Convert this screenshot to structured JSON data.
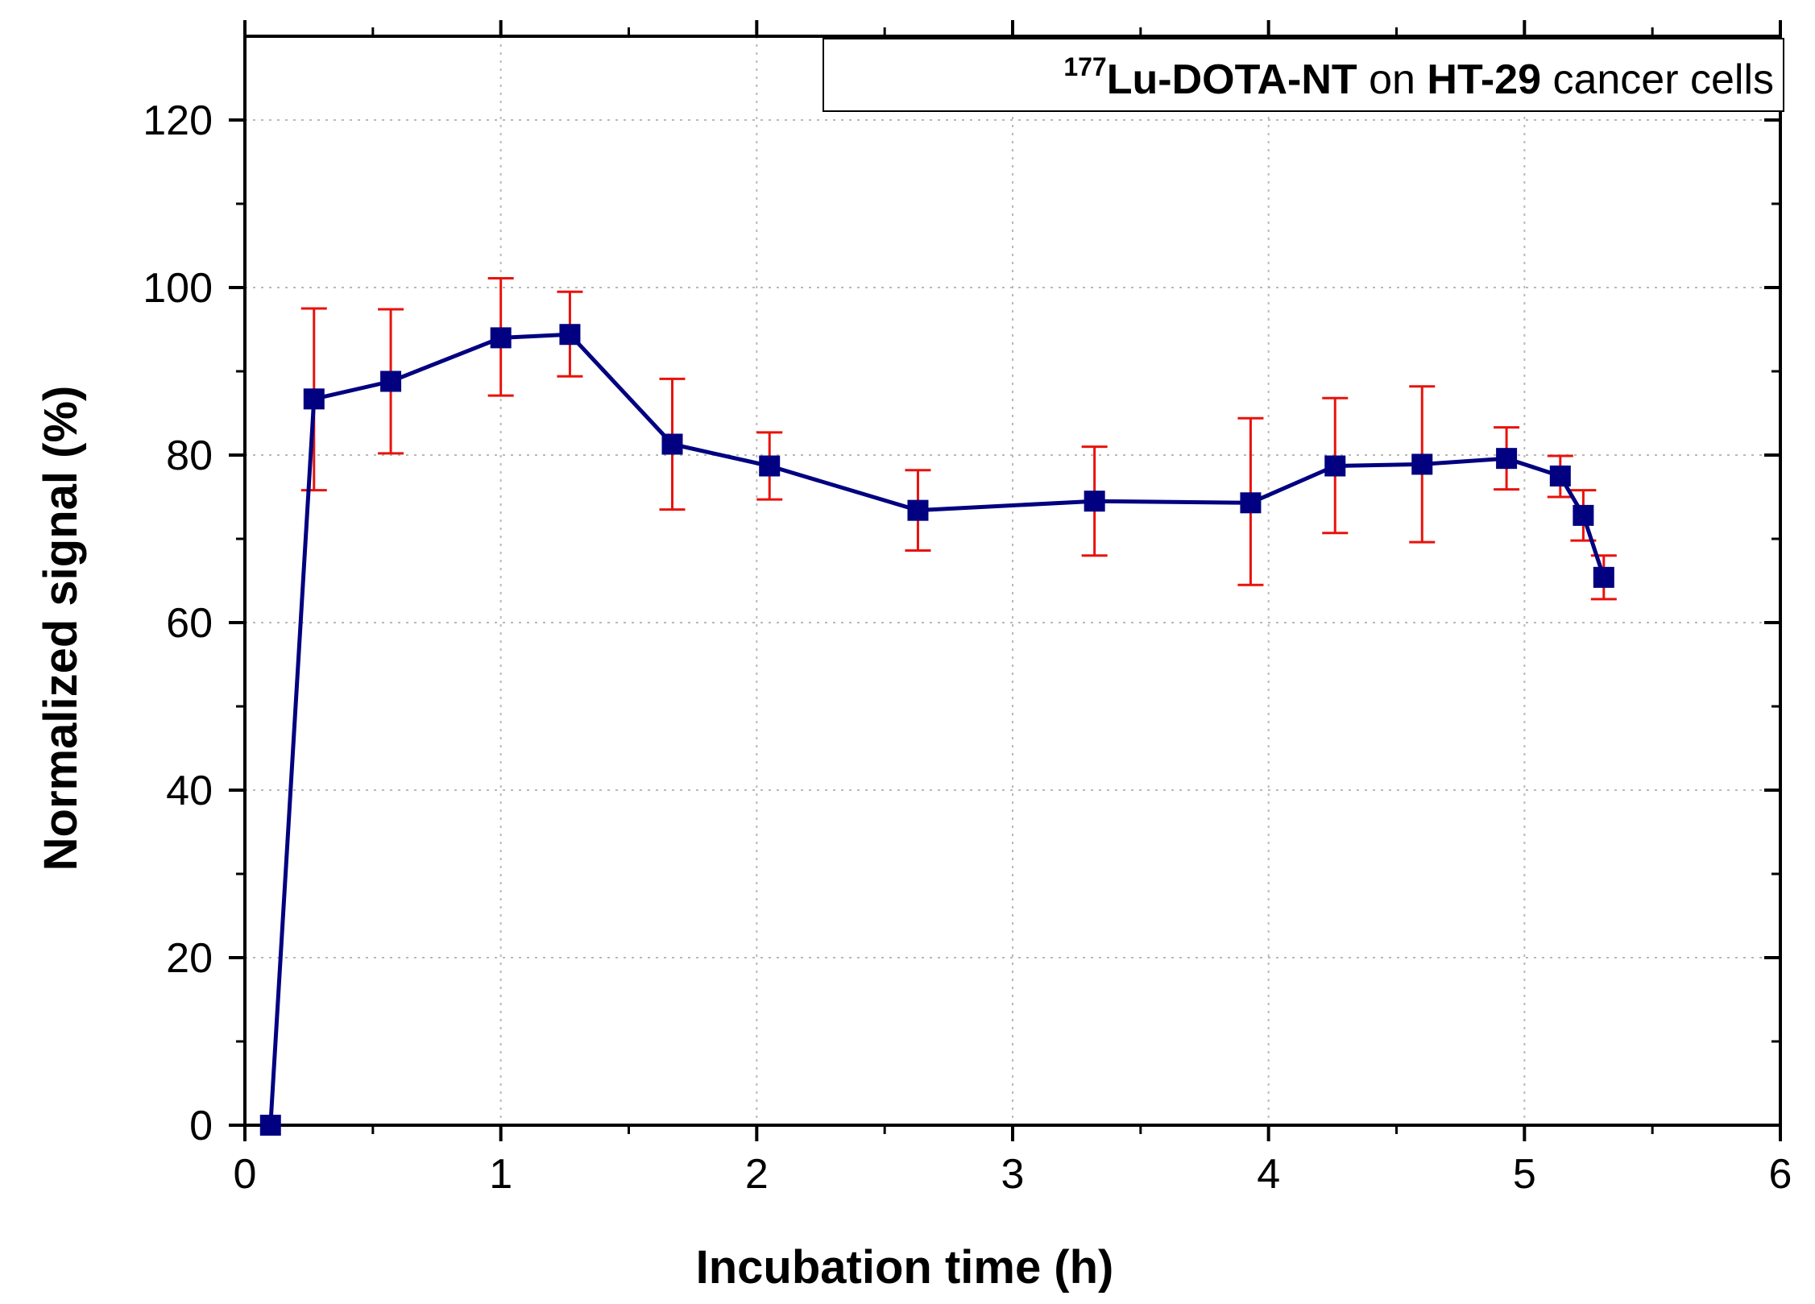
{
  "chart_data": {
    "type": "line",
    "title": "",
    "xlabel": "Incubation time (h)",
    "ylabel": "Normalized signal (%)",
    "xlim": [
      0,
      6
    ],
    "ylim": [
      0,
      130
    ],
    "x_ticks": [
      0,
      1,
      2,
      3,
      4,
      5,
      6
    ],
    "y_ticks": [
      0,
      20,
      40,
      60,
      80,
      100,
      120
    ],
    "x_tick_labels": [
      "0",
      "1",
      "2",
      "3",
      "4",
      "5",
      "6"
    ],
    "y_tick_labels": [
      "0",
      "20",
      "40",
      "60",
      "80",
      "100",
      "120"
    ],
    "grid": true,
    "legend_position": "top-right",
    "legend": {
      "isotope_mass": "177",
      "compound": "Lu-DOTA-NT",
      "connector": " on ",
      "cell_line": "HT-29",
      "suffix": " cancer cells"
    },
    "series": [
      {
        "name": "177Lu-DOTA-NT on HT-29 cancer cells",
        "line_color": "#000080",
        "marker_color": "#000080",
        "error_color": "#e8120c",
        "marker": "square",
        "x": [
          0.1,
          0.27,
          0.57,
          1.0,
          1.27,
          1.67,
          2.05,
          2.63,
          3.32,
          3.93,
          4.26,
          4.6,
          4.93,
          5.14,
          5.23,
          5.31
        ],
        "y": [
          0,
          86.7,
          88.8,
          94.0,
          94.4,
          81.3,
          78.7,
          73.4,
          74.5,
          74.3,
          78.7,
          78.9,
          79.6,
          77.5,
          72.8,
          65.4
        ],
        "error_low": [
          null,
          75.8,
          80.2,
          87.1,
          89.4,
          73.5,
          74.7,
          68.6,
          68.0,
          64.5,
          70.7,
          69.6,
          75.9,
          75.0,
          69.8,
          62.8
        ],
        "error_high": [
          null,
          97.5,
          97.4,
          101.1,
          99.5,
          89.1,
          82.7,
          78.2,
          81.0,
          84.4,
          86.8,
          88.2,
          83.3,
          79.9,
          75.8,
          68.0
        ]
      }
    ]
  }
}
